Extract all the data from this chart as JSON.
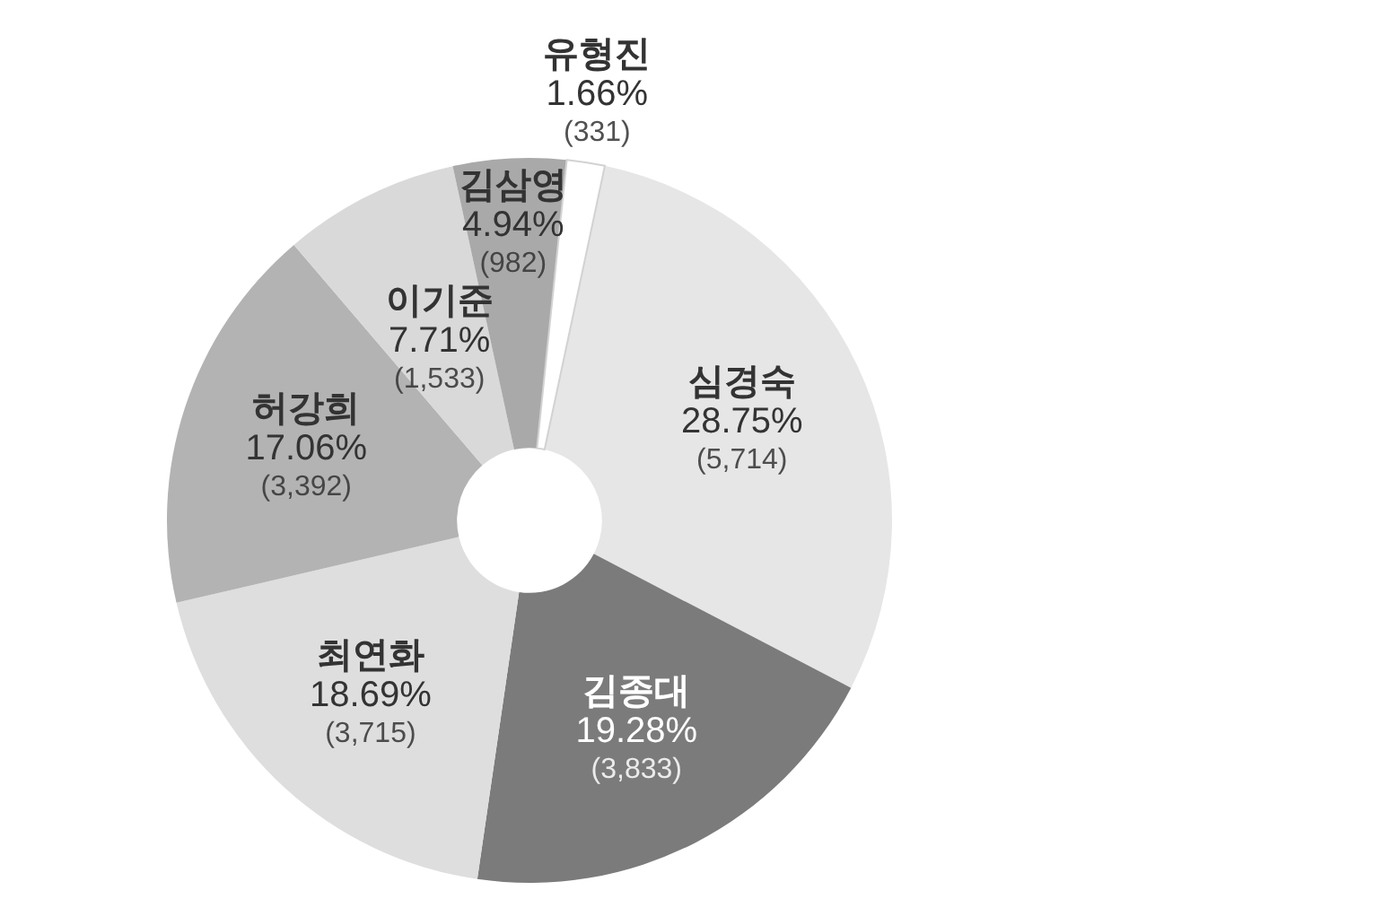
{
  "chart_data": {
    "type": "donut",
    "categories": [
      "심경숙",
      "김종대",
      "최연화",
      "허강희",
      "이기준",
      "김삼영",
      "유형진"
    ],
    "values": [
      28.75,
      19.28,
      18.69,
      17.06,
      7.71,
      4.94,
      1.66
    ],
    "colors": [
      "#e6e6e6",
      "#7b7b7b",
      "#dedede",
      "#b3b3b3",
      "#d9d9d9",
      "#a9a9a9",
      "#ffffff"
    ],
    "value_labels": [
      "28.75%\n(5,714)",
      "19.28%\n(3,833)",
      "18.69%\n(3,715)",
      "17.06%\n(3,392)",
      "7.71%\n(1,533)",
      "4.94%\n(982)",
      "1.66%\n(331)"
    ]
  }
}
